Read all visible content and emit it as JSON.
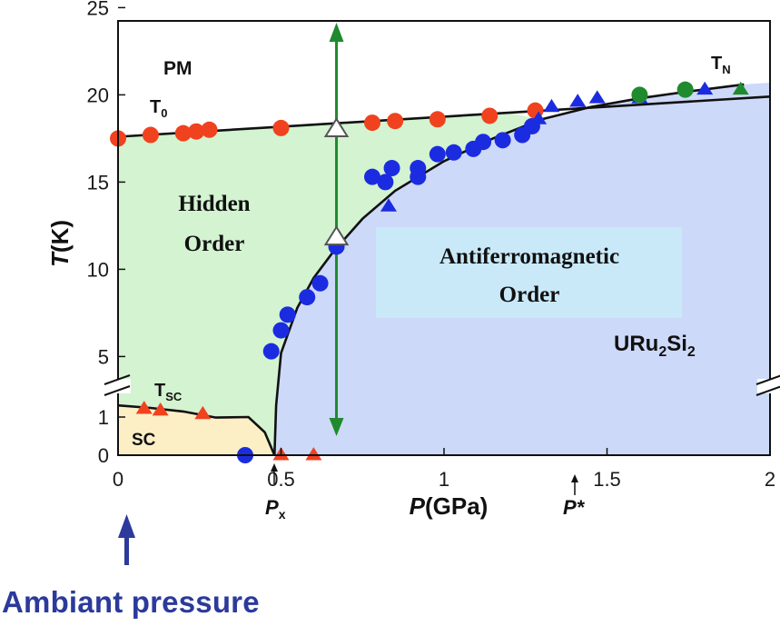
{
  "chart_data": {
    "type": "scatter",
    "title": "",
    "xlabel_main": "P",
    "xlabel_unit": "(GPa)",
    "ylabel_main": "T",
    "ylabel_unit": "(K)",
    "xlim": [
      0,
      2
    ],
    "x_ticks": [
      {
        "v": 0,
        "label": "0"
      },
      {
        "v": 0.5,
        "label": "0.5"
      },
      {
        "v": 1,
        "label": "1"
      },
      {
        "v": 1.5,
        "label": "1.5"
      },
      {
        "v": 2,
        "label": "2"
      }
    ],
    "y_axis_broken": true,
    "y_ticks": [
      "0",
      "1",
      "5",
      "10",
      "15",
      "20",
      "25"
    ],
    "region_labels": {
      "pm": "PM",
      "hidden": [
        "Hidden",
        "Order"
      ],
      "afm": [
        "Antiferromagnetic",
        "Order"
      ],
      "sc": "SC",
      "compound": {
        "main": "URu",
        "sub1": "2",
        "mid": "Si",
        "sub2": "2"
      }
    },
    "line_labels": {
      "t0": {
        "main": "T",
        "sub": "0"
      },
      "tn": {
        "main": "T",
        "sub": "N"
      },
      "tsc": {
        "main": "T",
        "sub": "SC"
      }
    },
    "pressure_markers": {
      "px": {
        "main": "P",
        "sub": "x",
        "x": 0.48
      },
      "pstar": {
        "main": "P*",
        "x": 1.4
      }
    },
    "colors": {
      "hidden_order": "#d3f3d1",
      "afm": "#cdd9f8",
      "afm_label_box": "#c9e9f9",
      "sc": "#fcefc6",
      "red": "#f0421e",
      "blue": "#1b2ce0",
      "green": "#1f8a2e",
      "arrow_green": "#1f8a2e",
      "ambient": "#2b3a9b"
    },
    "series": [
      {
        "name": "T0 (red circles)",
        "marker": "circle",
        "color": "red",
        "points": [
          [
            0.0,
            17.5
          ],
          [
            0.1,
            17.7
          ],
          [
            0.2,
            17.8
          ],
          [
            0.24,
            17.9
          ],
          [
            0.28,
            18.0
          ],
          [
            0.5,
            18.1
          ],
          [
            0.78,
            18.4
          ],
          [
            0.85,
            18.5
          ],
          [
            0.98,
            18.6
          ],
          [
            1.14,
            18.8
          ],
          [
            1.28,
            19.1
          ]
        ]
      },
      {
        "name": "TN (blue circles)",
        "marker": "circle",
        "color": "blue",
        "points": [
          [
            0.47,
            5.3
          ],
          [
            0.5,
            6.5
          ],
          [
            0.52,
            7.4
          ],
          [
            0.58,
            8.4
          ],
          [
            0.62,
            9.2
          ],
          [
            0.67,
            11.3
          ],
          [
            0.78,
            15.3
          ],
          [
            0.82,
            15.0
          ],
          [
            0.84,
            15.8
          ],
          [
            0.92,
            15.8
          ],
          [
            0.92,
            15.3
          ],
          [
            0.98,
            16.6
          ],
          [
            1.03,
            16.7
          ],
          [
            1.09,
            16.9
          ],
          [
            1.12,
            17.3
          ],
          [
            1.18,
            17.4
          ],
          [
            1.24,
            17.7
          ],
          [
            1.27,
            18.2
          ]
        ]
      },
      {
        "name": "TN (blue triangles)",
        "marker": "triangle",
        "color": "blue",
        "points": [
          [
            0.83,
            13.6
          ],
          [
            1.29,
            18.6
          ],
          [
            1.33,
            19.3
          ],
          [
            1.41,
            19.6
          ],
          [
            1.47,
            19.8
          ],
          [
            1.6,
            19.8
          ],
          [
            1.8,
            20.3
          ]
        ]
      },
      {
        "name": "TN (green)",
        "marker": "mixed",
        "color": "green",
        "points": [
          [
            1.6,
            20.0,
            "circle"
          ],
          [
            1.74,
            20.3,
            "circle"
          ],
          [
            1.91,
            20.3,
            "triangle"
          ]
        ]
      },
      {
        "name": "TSC (red triangles)",
        "marker": "triangle",
        "color": "red",
        "points": [
          [
            0.08,
            2.0
          ],
          [
            0.13,
            1.9
          ],
          [
            0.26,
            1.7
          ],
          [
            0.5,
            0.0
          ],
          [
            0.6,
            0.0
          ]
        ]
      },
      {
        "name": "blue circle at zero",
        "marker": "circle",
        "color": "blue",
        "points": [
          [
            0.39,
            0.0
          ]
        ]
      },
      {
        "name": "open triangles",
        "marker": "open-triangle",
        "color": "white",
        "points": [
          [
            0.67,
            18.0
          ],
          [
            0.67,
            11.8
          ]
        ]
      }
    ],
    "ambient_label": "Ambiant pressure"
  }
}
